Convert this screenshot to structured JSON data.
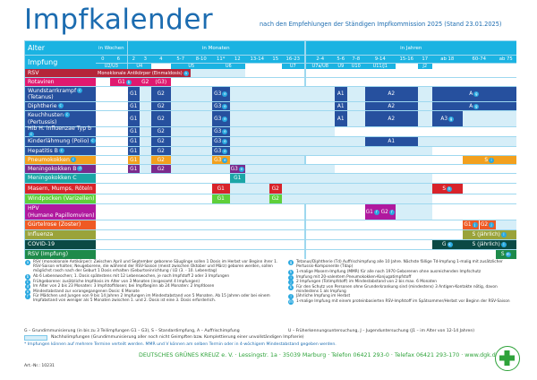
{
  "header": {
    "title": "Impfkalender",
    "subtitle": "nach den Empfehlungen der Ständigen Impfkommission 2025 (Stand 23.01.2025)"
  },
  "table": {
    "alter_label": "Alter",
    "impfung_label": "Impfung",
    "groups": [
      {
        "label": "in Wochen",
        "from": "0",
        "to": "6"
      },
      {
        "label": "in Monaten",
        "from": "2",
        "to": "16-23"
      },
      {
        "label": "in Jahren",
        "from": "2-4",
        "to": "ab 75"
      }
    ],
    "ages": [
      "0",
      "6",
      "2",
      "3",
      "4",
      "5-7",
      "8-10",
      "11*",
      "12",
      "13-14",
      "15",
      "16-23",
      "2-4",
      "5-6",
      "7-8",
      "9-14",
      "15-16",
      "17",
      "ab 18",
      "60-74",
      "ab 75"
    ],
    "checkups": [
      {
        "label": "U2/U3",
        "from": "0",
        "to": "6"
      },
      {
        "label": "U4",
        "from": "2",
        "to": "3"
      },
      {
        "label": "",
        "from": "4",
        "to": "4"
      },
      {
        "label": "U5",
        "from": "5-7",
        "to": "8-10"
      },
      {
        "label": "U6",
        "from": "11*",
        "to": "12"
      },
      {
        "label": "",
        "from": "13-14",
        "to": "15"
      },
      {
        "label": "U7",
        "from": "16-23",
        "to": "16-23"
      },
      {
        "label": "U7a/U8",
        "from": "2-4",
        "to": "2-4"
      },
      {
        "label": "U9",
        "from": "5-6",
        "to": "5-6"
      },
      {
        "label": "U10",
        "from": "7-8",
        "to": "7-8"
      },
      {
        "label": "U11/J1",
        "from": "9-14",
        "to": "9-14"
      },
      {
        "label": "",
        "from": "15-16",
        "to": "15-16"
      },
      {
        "label": "J2",
        "from": "17",
        "to": "17"
      },
      {
        "label": "",
        "from": "ab 18",
        "to": "ab 75"
      }
    ],
    "rows": [
      {
        "label": "RSV",
        "color": "#b5253a",
        "segments": [
          {
            "from": "0",
            "to": "5-7",
            "label": "Monoklonale Antikörper (Einmaldosis)",
            "sup": "a",
            "left": true
          },
          {
            "from": "8-10",
            "to": "12",
            "catch": true
          }
        ]
      },
      {
        "label": "Rotaviren",
        "color": "#e0196f",
        "segments": [
          {
            "from": "6",
            "to": "2",
            "label": "G1",
            "sup": "b"
          },
          {
            "from": "3",
            "to": "3",
            "label": "G2"
          },
          {
            "from": "4",
            "to": "4",
            "label": "(G3)"
          }
        ]
      },
      {
        "label": "Wundstarrkrampf",
        "label2": "(Tetanus)",
        "sup": "c",
        "color": "#26509e",
        "segments": [
          {
            "from": "2",
            "to": "2",
            "label": "G1"
          },
          {
            "from": "3",
            "to": "3",
            "catch": true
          },
          {
            "from": "4",
            "to": "4",
            "label": "G2"
          },
          {
            "from": "5-7",
            "to": "8-10",
            "catch": true
          },
          {
            "from": "11*",
            "to": "11*",
            "label": "G3",
            "sup": "e"
          },
          {
            "from": "12",
            "to": "2-4",
            "catch": true
          },
          {
            "from": "5-6",
            "to": "5-6",
            "label": "A1"
          },
          {
            "from": "7-8",
            "to": "7-8",
            "catch": true
          },
          {
            "from": "9-14",
            "to": "15-16",
            "label": "A2"
          },
          {
            "from": "17",
            "to": "17",
            "catch": true
          },
          {
            "from": "ab 18",
            "to": "ab 75",
            "label": "A",
            "sup": "g"
          }
        ]
      },
      {
        "label": "Diphtherie",
        "sup": "c",
        "color": "#26509e",
        "segments": [
          {
            "from": "2",
            "to": "2",
            "label": "G1"
          },
          {
            "from": "3",
            "to": "3",
            "catch": true
          },
          {
            "from": "4",
            "to": "4",
            "label": "G2"
          },
          {
            "from": "5-7",
            "to": "8-10",
            "catch": true
          },
          {
            "from": "11*",
            "to": "11*",
            "label": "G3",
            "sup": "e"
          },
          {
            "from": "12",
            "to": "2-4",
            "catch": true
          },
          {
            "from": "5-6",
            "to": "5-6",
            "label": "A1"
          },
          {
            "from": "7-8",
            "to": "7-8",
            "catch": true
          },
          {
            "from": "9-14",
            "to": "15-16",
            "label": "A2"
          },
          {
            "from": "17",
            "to": "17",
            "catch": true
          },
          {
            "from": "ab 18",
            "to": "ab 75",
            "label": "A",
            "sup": "g"
          }
        ]
      },
      {
        "label": "Keuchhusten",
        "label2": "(Pertussis)",
        "sup": "c",
        "color": "#26509e",
        "segments": [
          {
            "from": "2",
            "to": "2",
            "label": "G1"
          },
          {
            "from": "3",
            "to": "3",
            "catch": true
          },
          {
            "from": "4",
            "to": "4",
            "label": "G2"
          },
          {
            "from": "5-7",
            "to": "8-10",
            "catch": true
          },
          {
            "from": "11*",
            "to": "11*",
            "label": "G3",
            "sup": "e"
          },
          {
            "from": "12",
            "to": "2-4",
            "catch": true
          },
          {
            "from": "5-6",
            "to": "5-6",
            "label": "A1"
          },
          {
            "from": "7-8",
            "to": "7-8",
            "catch": true
          },
          {
            "from": "9-14",
            "to": "15-16",
            "label": "A2"
          },
          {
            "from": "17",
            "to": "17",
            "catch": true
          },
          {
            "from": "ab 18",
            "to": "ab 18",
            "label": "A3",
            "sup": "g"
          },
          {
            "from": "60-74",
            "to": "ab 75",
            "catch": true
          }
        ]
      },
      {
        "label": "Hib H. influenzae Typ b",
        "sup": "c",
        "color": "#26509e",
        "segments": [
          {
            "from": "2",
            "to": "2",
            "label": "G1"
          },
          {
            "from": "3",
            "to": "3",
            "catch": true
          },
          {
            "from": "4",
            "to": "4",
            "label": "G2"
          },
          {
            "from": "5-7",
            "to": "8-10",
            "catch": true
          },
          {
            "from": "11*",
            "to": "11*",
            "label": "G3",
            "sup": "e"
          },
          {
            "from": "12",
            "to": "2-4",
            "catch": true
          }
        ]
      },
      {
        "label": "Kinderlähmung (Polio)",
        "sup": "c",
        "color": "#26509e",
        "segments": [
          {
            "from": "2",
            "to": "2",
            "label": "G1"
          },
          {
            "from": "3",
            "to": "3",
            "catch": true
          },
          {
            "from": "4",
            "to": "4",
            "label": "G2"
          },
          {
            "from": "5-7",
            "to": "8-10",
            "catch": true
          },
          {
            "from": "11*",
            "to": "11*",
            "label": "G3",
            "sup": "e"
          },
          {
            "from": "12",
            "to": "7-8",
            "catch": true
          },
          {
            "from": "9-14",
            "to": "15-16",
            "label": "A1"
          },
          {
            "from": "17",
            "to": "ab 75",
            "catch": true
          }
        ]
      },
      {
        "label": "Hepatitis B",
        "sup": "c",
        "color": "#26509e",
        "segments": [
          {
            "from": "2",
            "to": "2",
            "label": "G1"
          },
          {
            "from": "3",
            "to": "3",
            "catch": true
          },
          {
            "from": "4",
            "to": "4",
            "label": "G2"
          },
          {
            "from": "5-7",
            "to": "8-10",
            "catch": true
          },
          {
            "from": "11*",
            "to": "11*",
            "label": "G3",
            "sup": "e"
          },
          {
            "from": "12",
            "to": "17",
            "catch": true
          }
        ]
      },
      {
        "label": "Pneumokokken",
        "sup": "c",
        "color": "#f2a01e",
        "segments": [
          {
            "from": "2",
            "to": "2",
            "label": "G1"
          },
          {
            "from": "3",
            "to": "3",
            "catch": true
          },
          {
            "from": "4",
            "to": "4",
            "label": "G2"
          },
          {
            "from": "5-7",
            "to": "8-10",
            "catch": true
          },
          {
            "from": "11*",
            "to": "11*",
            "label": "G3",
            "sup": "e"
          },
          {
            "from": "12",
            "to": "16-23",
            "catch": true
          },
          {
            "from": "60-74",
            "to": "ab 75",
            "label": "S",
            "sup": "i"
          }
        ]
      },
      {
        "label": "Meningokokken B",
        "sup": "d",
        "color": "#7a2a8c",
        "segments": [
          {
            "from": "2",
            "to": "2",
            "label": "G1"
          },
          {
            "from": "3",
            "to": "3",
            "catch": true
          },
          {
            "from": "4",
            "to": "4",
            "label": "G2"
          },
          {
            "from": "5-7",
            "to": "11*",
            "catch": true
          },
          {
            "from": "12",
            "to": "12",
            "label": "G3",
            "sup": "e"
          },
          {
            "from": "13-14",
            "to": "2-4",
            "catch": true
          }
        ]
      },
      {
        "label": "Meningokokken C",
        "color": "#1ba6a6",
        "segments": [
          {
            "from": "12",
            "to": "12",
            "label": "G1"
          },
          {
            "from": "13-14",
            "to": "17",
            "catch": true
          }
        ]
      },
      {
        "label": "Masern, Mumps, Röteln",
        "color": "#d8232a",
        "segments": [
          {
            "from": "11*",
            "to": "11*",
            "label": "G1"
          },
          {
            "from": "12",
            "to": "13-14",
            "catch": true
          },
          {
            "from": "15",
            "to": "15",
            "label": "G2"
          },
          {
            "from": "16-23",
            "to": "17",
            "catch": true
          },
          {
            "from": "ab 18",
            "to": "ab 18",
            "label": "S",
            "sup": "h"
          }
        ]
      },
      {
        "label": "Windpocken (Varizellen)",
        "color": "#5fcf3a",
        "segments": [
          {
            "from": "11*",
            "to": "11*",
            "label": "G1"
          },
          {
            "from": "12",
            "to": "13-14",
            "catch": true
          },
          {
            "from": "15",
            "to": "15",
            "label": "G2"
          },
          {
            "from": "16-23",
            "to": "17",
            "catch": true
          }
        ]
      },
      {
        "label": "HPV",
        "label2": "(Humane Papillomviren)",
        "color": "#b0199e",
        "segments": [
          {
            "from": "9-14",
            "to": "9-14",
            "split": [
              {
                "label": "G1",
                "sup": "f"
              },
              {
                "label": "G2",
                "sup": "f"
              }
            ]
          },
          {
            "from": "15-16",
            "to": "17",
            "catch": true
          }
        ]
      },
      {
        "label": "Gürtelrose (Zoster)",
        "color": "#ef5a24",
        "segments": [
          {
            "from": "60-74",
            "to": "60-74",
            "split": [
              {
                "label": "G1",
                "sup": "j"
              },
              {
                "label": "G2",
                "sup": "j"
              }
            ]
          },
          {
            "from": "ab 75",
            "to": "ab 75",
            "catch": true
          }
        ]
      },
      {
        "label": "Influenza",
        "color": "#9aa33a",
        "segments": [
          {
            "from": "60-74",
            "to": "ab 75",
            "label": "S (jährlich)",
            "sup": "l"
          }
        ]
      },
      {
        "label": "COVID-19",
        "color": "#0b4a45",
        "segments": [
          {
            "from": "ab 18",
            "to": "ab 18",
            "label": "G",
            "sup": "k"
          },
          {
            "from": "60-74",
            "to": "ab 75",
            "label": "S (jährlich)",
            "sup": "l"
          }
        ]
      },
      {
        "label": "RSV (Impfung)",
        "color": "#1e8a4a",
        "segments": [
          {
            "from": "ab 75",
            "to": "ab 75",
            "label": "S",
            "sup": "m"
          }
        ]
      }
    ]
  },
  "footnotes_left": [
    {
      "key": "a",
      "text": "RSV (monoklonale Antikörper): Zwischen April und September geborene Säuglinge sollen 1 Dosis im Herbst vor Beginn ihrer 1. RSV-Saison erhalten; Neugeborene, die während der RSV-Saison (meist zwischen Oktober und März) geboren werden, sollen möglichst rasch nach der Geburt 1 Dosis erhalten (Geburtseinrichtung / U2 (3. - 10. Lebenstag)"
    },
    {
      "key": "b",
      "text": "Ab 6 Lebenswochen; 1. Dosis spätestens mit 12 Lebenswochen, je nach Impfstoff 2 oder 3 Impfungen"
    },
    {
      "key": "c",
      "text": "Frühgeborene: zusätzliche Impfdosis im Alter von 3 Monaten (insgesamt 4 Impfungen)"
    },
    {
      "key": "d",
      "text": "Im Alter von 2 bis 23 Monaten: 3 Impfstoffdosen; bei Impfbeginn ab 24 Monaten: 2 Impfdosen"
    },
    {
      "key": "e",
      "text": "Mindestabstand zur vorangegangenen Dosis: 6 Monate"
    },
    {
      "key": "f",
      "text": "Für Mädchen und Jungen von 9 bis 14 Jahren 2 Impfungen im Mindestabstand von 5 Monaten. Ab 15 Jahren oder bei einem Impfabstand von weniger als 5 Monaten zwischen 1. und 2. Dosis ist eine 3. Dosis erforderlich."
    }
  ],
  "footnotes_right": [
    {
      "key": "g",
      "text": "Tetanus/Diphtherie (Td) Auffrischimpfung alle 10 Jahre. Nächste fällige Td-Impfung 1-malig mit zusätzlicher Pertussis-Komponente (Tdap)"
    },
    {
      "key": "h",
      "text": "1-malige Masern-Impfung (MMR) für alle nach 1970 Geborenen ohne ausreichenden Impfschutz"
    },
    {
      "key": "i",
      "text": "Impfung mit 20-valentem Pneumokokken-Konjugatimpfstoff"
    },
    {
      "key": "j",
      "text": "2 Impfungen (Totimpfstoff) im Mindestabstand von 2 bis max. 6 Monaten"
    },
    {
      "key": "k",
      "text": "Für den Schutz von Personen ohne Grunderkrankung sind (mindestens) 3 Antigen-Kontakte nötig, davon mindestens 1 als Impfung"
    },
    {
      "key": "l",
      "text": "Jährliche Impfung im Herbst"
    },
    {
      "key": "m",
      "text": "1-malige Impfung mit einem proteinbasierten RSV-Impfstoff im Spätsommer/Herbst vor Beginn der RSV-Saison"
    }
  ],
  "legend": {
    "abbrev_left": "G – Grundimmunisierung (in bis zu 3 Teilimpfungen G1 – G3), S – Standardimpfung, A – Auffrischimpfung",
    "abbrev_right": "U – Früherkennungsuntersuchung, J – Jugenduntersuchung (J1 – im Alter von 12-14 Jahren)",
    "catchup": "Nachholimpfungen (Grundimmunisierung aller noch nicht Geimpften bzw. Komplettierung einer unvollständigen Impfserie)",
    "catchup_color": "#d6eef8",
    "asterisk": "* Impfungen können auf mehrere Termine verteilt werden. MMR und V können am selben Termin oder in 4-wöchigem Mindestabstand gegeben werden."
  },
  "footer": {
    "publisher": "DEUTSCHES GRÜNES KREUZ e. V. · Lessingstr. 1a · 35039 Marburg · Telefon 06421 293-0 · Telefax 06421 293-170 · www.dgk.de",
    "article_number": "Art.-Nr.: 10231",
    "logo_text": "Deutsches Grünes Kreuz"
  },
  "colors": {
    "header": "#1bb3e2",
    "title": "#1c6cb0",
    "catchup": "#d6eef8",
    "footer": "#2ea33a"
  }
}
